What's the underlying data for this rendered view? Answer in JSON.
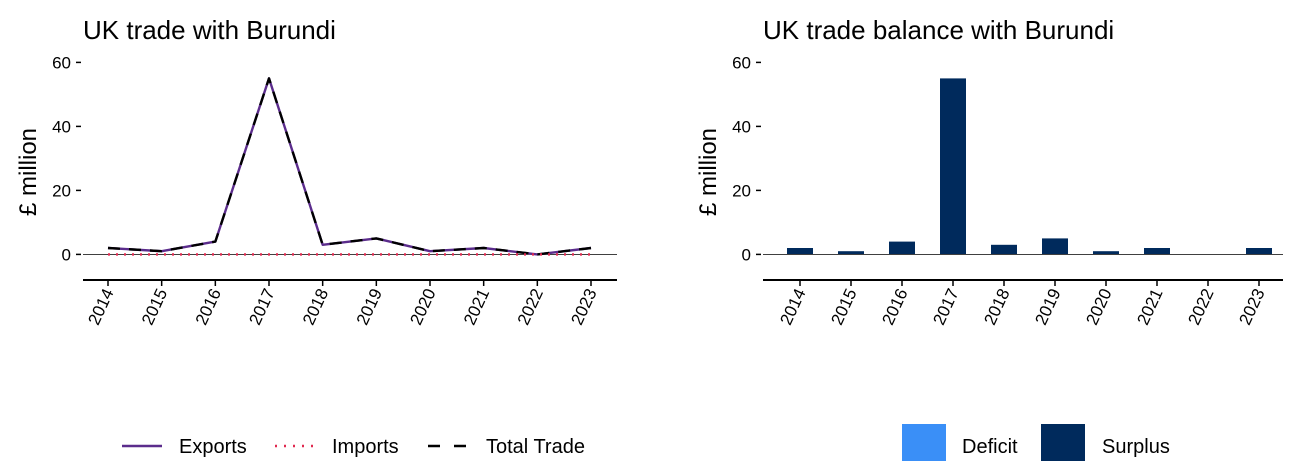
{
  "chart_data": [
    {
      "type": "line",
      "title": "UK trade with Burundi",
      "xlabel": "",
      "ylabel": "£ million",
      "x": [
        "2014",
        "2015",
        "2016",
        "2017",
        "2018",
        "2019",
        "2020",
        "2021",
        "2022",
        "2023"
      ],
      "ylim": [
        -8,
        62
      ],
      "yticks": [
        0,
        20,
        40,
        60
      ],
      "grid": false,
      "legend": "bottom",
      "series": [
        {
          "name": "Exports",
          "color": "#5b2c8c",
          "style": "solid",
          "values": [
            2,
            1,
            4,
            55,
            3,
            5,
            1,
            2,
            0,
            2
          ]
        },
        {
          "name": "Imports",
          "color": "#e0284e",
          "style": "dotted",
          "values": [
            0,
            0,
            0,
            0,
            0,
            0,
            0,
            0,
            0,
            0
          ]
        },
        {
          "name": "Total Trade",
          "color": "#000000",
          "style": "dashed",
          "values": [
            2,
            1,
            4,
            55,
            3,
            5,
            1,
            2,
            0,
            2
          ]
        }
      ]
    },
    {
      "type": "bar",
      "title": "UK trade balance with Burundi",
      "xlabel": "",
      "ylabel": "£ million",
      "categories": [
        "2014",
        "2015",
        "2016",
        "2017",
        "2018",
        "2019",
        "2020",
        "2021",
        "2022",
        "2023"
      ],
      "ylim": [
        -8,
        62
      ],
      "yticks": [
        0,
        20,
        40,
        60
      ],
      "grid": false,
      "legend": "bottom",
      "legend_items": [
        {
          "name": "Deficit",
          "color": "#3a8ff7"
        },
        {
          "name": "Surplus",
          "color": "#002a5c"
        }
      ],
      "series": [
        {
          "name": "Surplus",
          "color": "#002a5c",
          "values": [
            2,
            1,
            4,
            55,
            3,
            5,
            1,
            2,
            0,
            2
          ]
        }
      ]
    }
  ]
}
